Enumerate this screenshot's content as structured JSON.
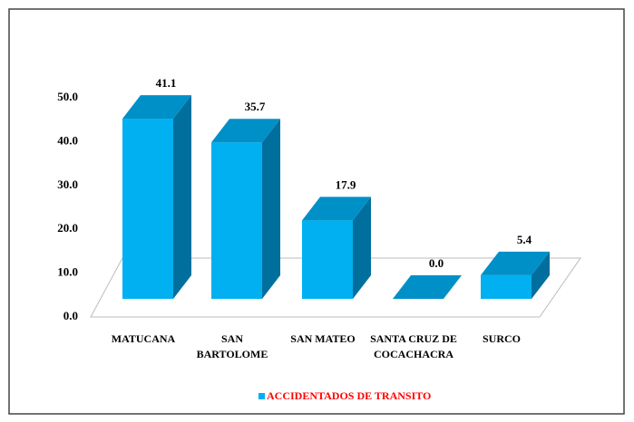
{
  "chart_data": {
    "type": "bar3d",
    "categories": [
      "MATUCANA",
      "SAN BARTOLOME",
      "SAN MATEO",
      "SANTA CRUZ DE COCACHACRA",
      "SURCO"
    ],
    "series": [
      {
        "name": "ACCIDENTADOS DE TRANSITO",
        "color": "#00b0f0",
        "values": [
          41.1,
          35.7,
          17.9,
          0,
          5.4
        ],
        "value_labels": [
          "41.1",
          "35.7",
          "17.9",
          "0.0",
          "5.4"
        ]
      }
    ],
    "ylim": [
      0,
      50
    ],
    "yticks": [
      {
        "value": 0,
        "label": "0.0"
      },
      {
        "value": 10,
        "label": "10.0"
      },
      {
        "value": 20,
        "label": "20.0"
      },
      {
        "value": 30,
        "label": "30.0"
      },
      {
        "value": 40,
        "label": "40.0"
      },
      {
        "value": 50,
        "label": "50.0"
      }
    ],
    "legend": "bottom"
  }
}
